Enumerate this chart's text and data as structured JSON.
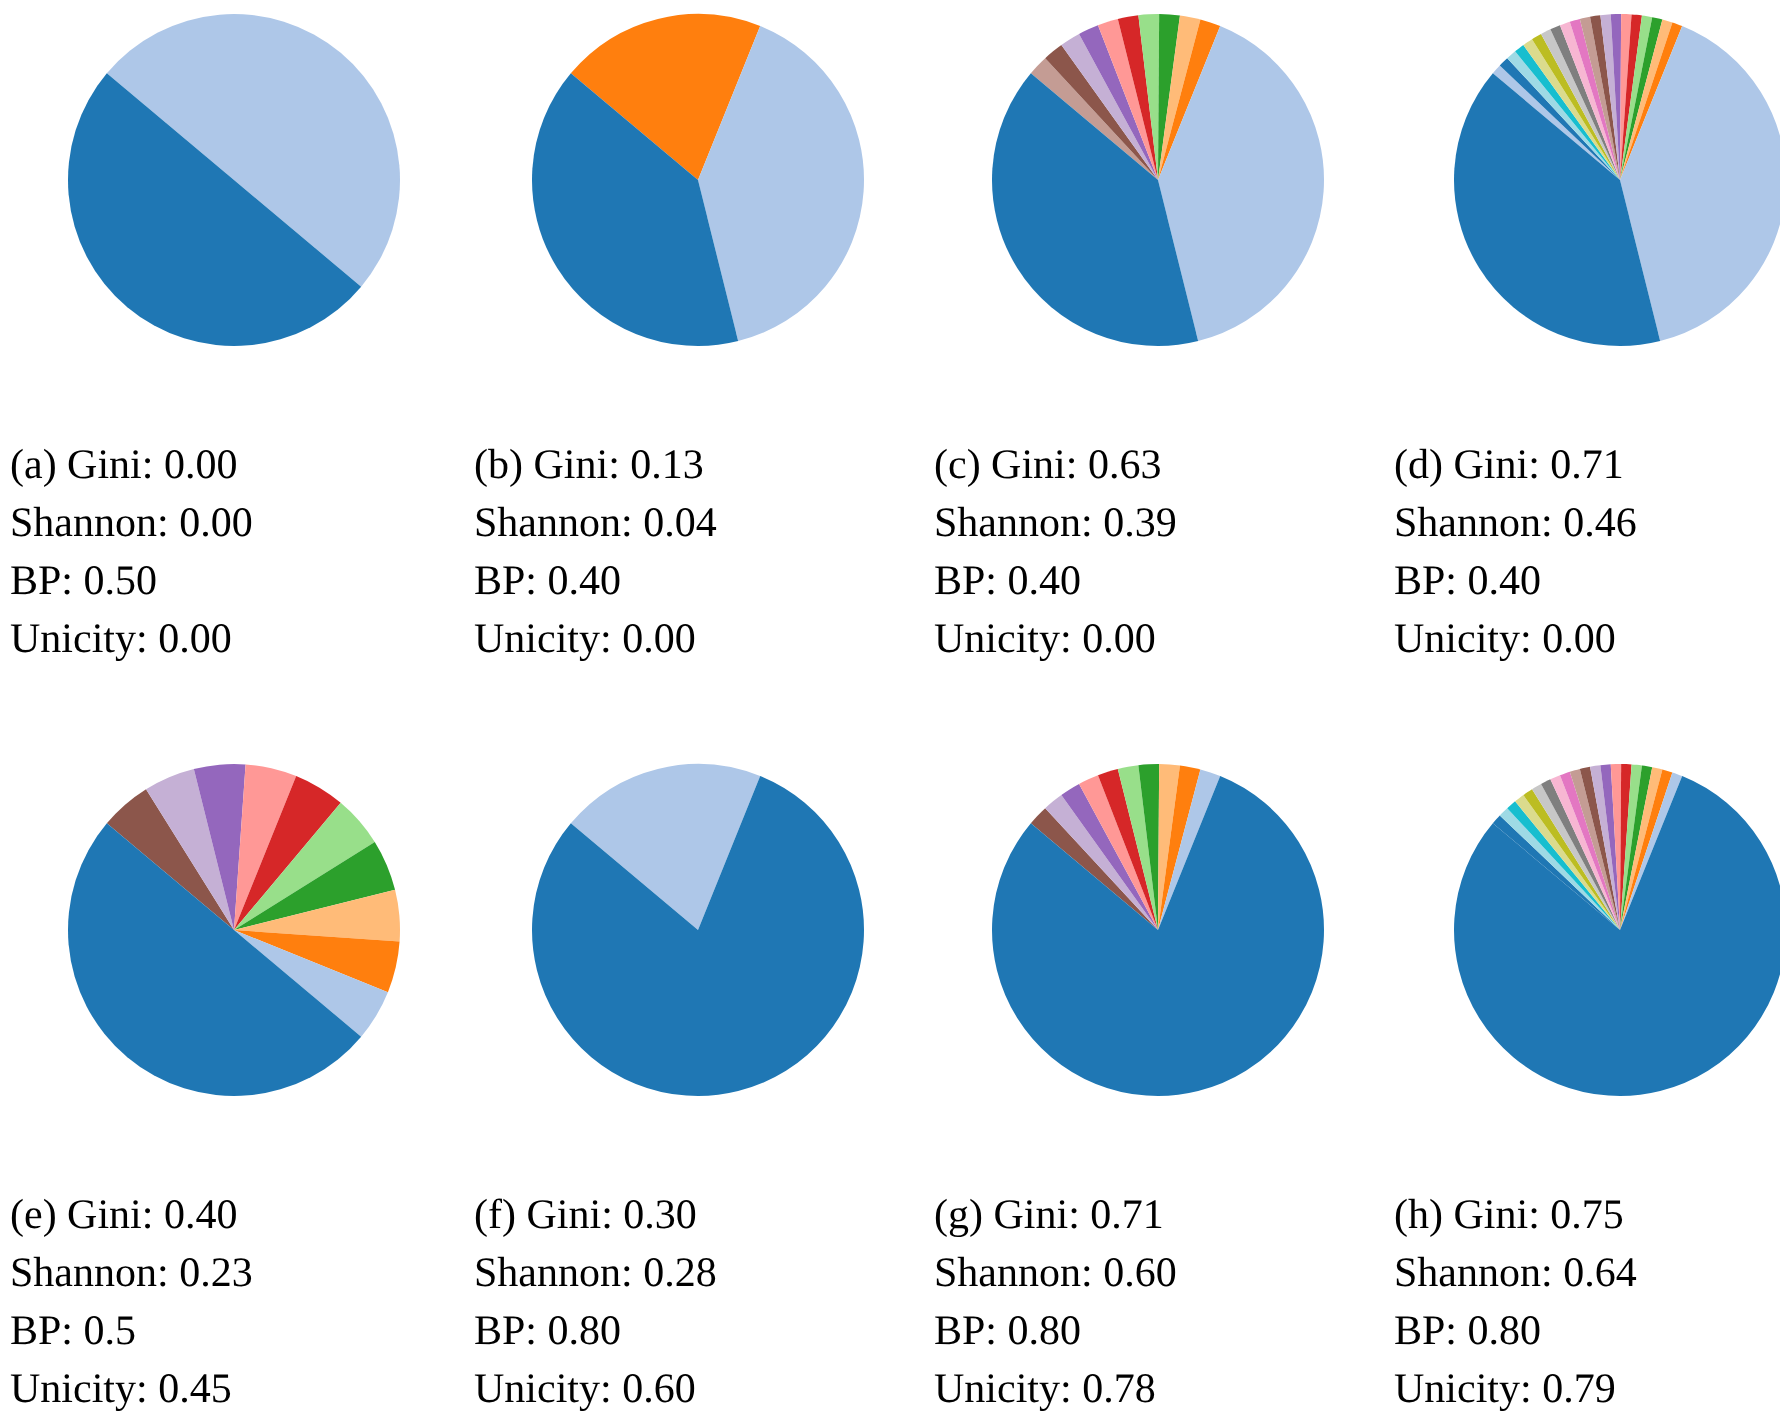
{
  "chart_data": [
    {
      "type": "pie",
      "categories": [
        null,
        null
      ],
      "values": [
        50,
        50
      ],
      "colors": [
        "#1f77b4",
        "#aec7e8"
      ],
      "annotations": [
        "(a) Gini: 0.00",
        "Shannon: 0.00",
        "BP: 0.50",
        "Unicity: 0.00"
      ]
    },
    {
      "type": "pie",
      "categories": [
        null,
        null,
        null
      ],
      "values": [
        40,
        40,
        20
      ],
      "colors": [
        "#1f77b4",
        "#aec7e8",
        "#ff7f0e"
      ],
      "annotations": [
        "(b) Gini: 0.13",
        "Shannon: 0.04",
        "BP: 0.40",
        "Unicity: 0.00"
      ]
    },
    {
      "type": "pie",
      "categories": [
        null,
        null,
        null,
        null,
        null,
        null,
        null,
        null,
        null,
        null,
        null,
        null
      ],
      "values": [
        40,
        40,
        2,
        2,
        2,
        2,
        2,
        2,
        2,
        2,
        2,
        2
      ],
      "colors": [
        "#1f77b4",
        "#aec7e8",
        "#ff7f0e",
        "#ffbb78",
        "#2ca02c",
        "#98df8a",
        "#d62728",
        "#ff9896",
        "#9467bd",
        "#c5b0d5",
        "#8c564b",
        "#c49c94"
      ],
      "annotations": [
        "(c) Gini: 0.63",
        "Shannon: 0.39",
        "BP: 0.40",
        "Unicity: 0.00"
      ]
    },
    {
      "type": "pie",
      "categories": [
        null,
        null,
        null,
        null,
        null,
        null,
        null,
        null,
        null,
        null,
        null,
        null,
        null,
        null,
        null,
        null,
        null,
        null,
        null,
        null,
        null,
        null
      ],
      "values": [
        40,
        40,
        1,
        1,
        1,
        1,
        1,
        1,
        1,
        1,
        1,
        1,
        1,
        1,
        1,
        1,
        1,
        1,
        1,
        1,
        1,
        1
      ],
      "colors": [
        "#1f77b4",
        "#aec7e8",
        "#ff7f0e",
        "#ffbb78",
        "#2ca02c",
        "#98df8a",
        "#d62728",
        "#ff9896",
        "#9467bd",
        "#c5b0d5",
        "#8c564b",
        "#c49c94",
        "#e377c2",
        "#f7b6d2",
        "#7f7f7f",
        "#c7c7c7",
        "#bcbd22",
        "#dbdb8d",
        "#17becf",
        "#9edae5",
        "#1f77b4",
        "#aec7e8"
      ],
      "annotations": [
        "(d) Gini: 0.71",
        "Shannon: 0.46",
        "BP: 0.40",
        "Unicity: 0.00"
      ]
    },
    {
      "type": "pie",
      "categories": [
        null,
        null,
        null,
        null,
        null,
        null,
        null,
        null,
        null,
        null,
        null
      ],
      "values": [
        50,
        5,
        5,
        5,
        5,
        5,
        5,
        5,
        5,
        5,
        5
      ],
      "colors": [
        "#1f77b4",
        "#aec7e8",
        "#ff7f0e",
        "#ffbb78",
        "#2ca02c",
        "#98df8a",
        "#d62728",
        "#ff9896",
        "#9467bd",
        "#c5b0d5",
        "#8c564b"
      ],
      "annotations": [
        "(e) Gini: 0.40",
        "Shannon: 0.23",
        "BP: 0.5",
        "Unicity: 0.45"
      ]
    },
    {
      "type": "pie",
      "categories": [
        null,
        null
      ],
      "values": [
        80,
        20
      ],
      "colors": [
        "#1f77b4",
        "#aec7e8"
      ],
      "annotations": [
        "(f) Gini: 0.30",
        "Shannon: 0.28",
        "BP: 0.80",
        "Unicity: 0.60"
      ]
    },
    {
      "type": "pie",
      "categories": [
        null,
        null,
        null,
        null,
        null,
        null,
        null,
        null,
        null,
        null,
        null
      ],
      "values": [
        80,
        2,
        2,
        2,
        2,
        2,
        2,
        2,
        2,
        2,
        2
      ],
      "colors": [
        "#1f77b4",
        "#aec7e8",
        "#ff7f0e",
        "#ffbb78",
        "#2ca02c",
        "#98df8a",
        "#d62728",
        "#ff9896",
        "#9467bd",
        "#c5b0d5",
        "#8c564b"
      ],
      "annotations": [
        "(g) Gini: 0.71",
        "Shannon: 0.60",
        "BP: 0.80",
        "Unicity: 0.78"
      ]
    },
    {
      "type": "pie",
      "categories": [
        null,
        null,
        null,
        null,
        null,
        null,
        null,
        null,
        null,
        null,
        null,
        null,
        null,
        null,
        null,
        null,
        null,
        null,
        null,
        null,
        null
      ],
      "values": [
        80,
        1,
        1,
        1,
        1,
        1,
        1,
        1,
        1,
        1,
        1,
        1,
        1,
        1,
        1,
        1,
        1,
        1,
        1,
        1,
        1
      ],
      "colors": [
        "#1f77b4",
        "#aec7e8",
        "#ff7f0e",
        "#ffbb78",
        "#2ca02c",
        "#98df8a",
        "#d62728",
        "#ff9896",
        "#9467bd",
        "#c5b0d5",
        "#8c564b",
        "#c49c94",
        "#e377c2",
        "#f7b6d2",
        "#7f7f7f",
        "#c7c7c7",
        "#bcbd22",
        "#dbdb8d",
        "#17becf",
        "#9edae5",
        "#1f77b4"
      ],
      "annotations": [
        "(h) Gini: 0.75",
        "Shannon: 0.64",
        "BP: 0.80",
        "Unicity: 0.79"
      ]
    }
  ]
}
